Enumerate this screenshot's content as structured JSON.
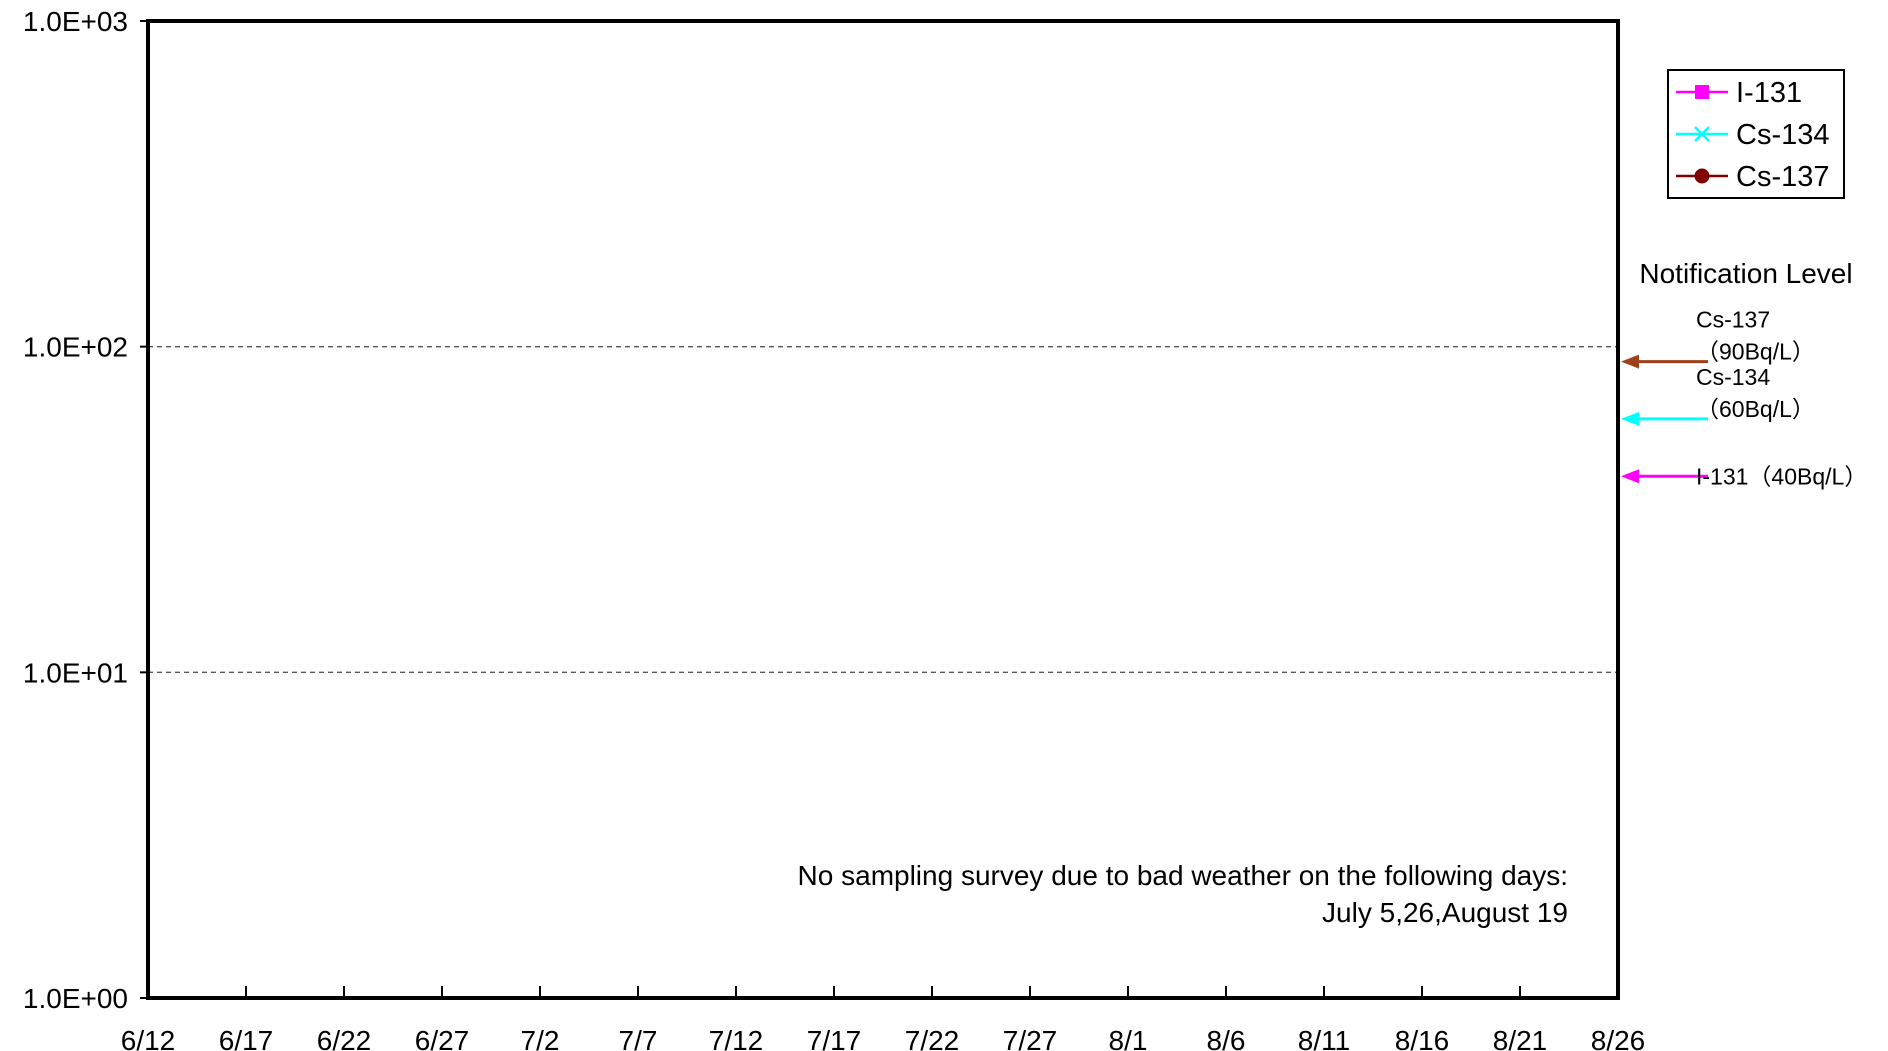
{
  "chart_data": {
    "type": "line",
    "title": "",
    "xlabel": "",
    "ylabel": "",
    "yscale": "log",
    "ylim": [
      1,
      1000
    ],
    "y_ticks": [
      1,
      10,
      100,
      1000
    ],
    "y_tick_labels": [
      "1.0E+00",
      "1.0E+01",
      "1.0E+02",
      "1.0E+03"
    ],
    "x_range": [
      "6/12",
      "8/26"
    ],
    "x_ticks": [
      "6/12",
      "6/17",
      "6/22",
      "6/27",
      "7/2",
      "7/7",
      "7/12",
      "7/17",
      "7/22",
      "7/27",
      "8/1",
      "8/6",
      "8/11",
      "8/16",
      "8/21",
      "8/26"
    ],
    "grid": "dashed horizontal at 10 and 100",
    "legend_position": "top-right, outside plot",
    "series": [
      {
        "name": "I-131",
        "color": "#ff00ff",
        "marker": "square",
        "values": []
      },
      {
        "name": "Cs-134",
        "color": "#00ffff",
        "marker": "x",
        "values": []
      },
      {
        "name": "Cs-137",
        "color": "#800000",
        "marker": "circle",
        "values": []
      }
    ],
    "notification": {
      "title": "Notification Level",
      "levels": [
        {
          "nuclide": "Cs-137",
          "value": 90,
          "line1": "Cs-137",
          "line2": "（90Bq/L）",
          "color": "#a0401a"
        },
        {
          "nuclide": "Cs-134",
          "value": 60,
          "line1": "Cs-134",
          "line2": "（60Bq/L）",
          "color": "#00ffff"
        },
        {
          "nuclide": "I-131",
          "value": 40,
          "line1": "I-131（40Bq/L）",
          "line2": "",
          "color": "#ff00ff"
        }
      ]
    },
    "note": {
      "line1": "No sampling survey due to bad weather on the following days:",
      "line2": "July 5,26,August 19"
    }
  }
}
